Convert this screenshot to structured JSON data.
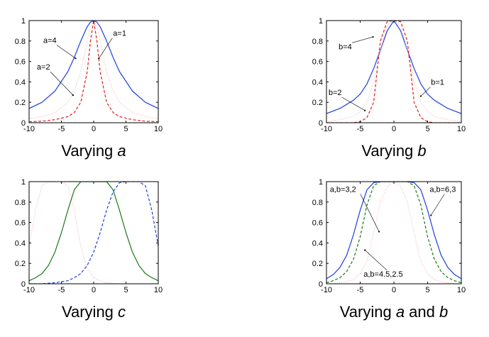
{
  "chart_data": [
    {
      "type": "line",
      "caption": {
        "prefix": "Varying ",
        "var": "a",
        "suffix": ""
      },
      "xlim": [
        -10,
        10
      ],
      "ylim": [
        0,
        1
      ],
      "xticks": [
        -10,
        -5,
        0,
        5,
        10
      ],
      "yticks": [
        0,
        0.2,
        0.4,
        0.6,
        0.8,
        1
      ],
      "x": [
        -10,
        -8,
        -6,
        -4,
        -3,
        -2,
        -1,
        -0.5,
        0,
        0.5,
        1,
        2,
        3,
        4,
        6,
        8,
        10
      ],
      "series": [
        {
          "color": "#1f3fe0",
          "dash": "solid",
          "y": [
            0.14,
            0.2,
            0.31,
            0.5,
            0.64,
            0.8,
            0.94,
            0.985,
            1,
            0.985,
            0.94,
            0.8,
            0.64,
            0.5,
            0.31,
            0.2,
            0.14
          ]
        },
        {
          "color": "#f2b8b8",
          "dash": "dotted",
          "y": [
            0.04,
            0.06,
            0.1,
            0.2,
            0.31,
            0.5,
            0.8,
            0.94,
            1,
            0.94,
            0.8,
            0.5,
            0.31,
            0.2,
            0.1,
            0.06,
            0.04
          ]
        },
        {
          "color": "#e02020",
          "dash": "dashed",
          "y": [
            0.01,
            0.015,
            0.03,
            0.06,
            0.1,
            0.2,
            0.5,
            0.8,
            1,
            0.8,
            0.5,
            0.2,
            0.1,
            0.06,
            0.03,
            0.015,
            0.01
          ]
        }
      ],
      "annotations": [
        {
          "text": "a=4",
          "x": -7.8,
          "y": 0.78,
          "ax": -2.8,
          "ay": 0.63
        },
        {
          "text": "a=2",
          "x": -8.8,
          "y": 0.52,
          "ax": -3.2,
          "ay": 0.27
        },
        {
          "text": "a=1",
          "x": 3.0,
          "y": 0.85,
          "ax": 0.8,
          "ay": 0.63
        }
      ]
    },
    {
      "type": "line",
      "caption": {
        "prefix": "Varying ",
        "var": "b",
        "suffix": ""
      },
      "xlim": [
        -10,
        10
      ],
      "ylim": [
        0,
        1
      ],
      "xticks": [
        -10,
        -5,
        0,
        5,
        10
      ],
      "yticks": [
        0,
        0.2,
        0.4,
        0.6,
        0.8,
        1
      ],
      "x": [
        -10,
        -8,
        -6,
        -5,
        -4,
        -3,
        -2.5,
        -2,
        -1,
        0,
        1,
        2,
        2.5,
        3,
        4,
        5,
        6,
        8,
        10
      ],
      "series": [
        {
          "color": "#1f3fe0",
          "dash": "solid",
          "y": [
            0.09,
            0.14,
            0.22,
            0.28,
            0.38,
            0.53,
            0.62,
            0.71,
            0.9,
            1,
            0.9,
            0.71,
            0.62,
            0.53,
            0.38,
            0.28,
            0.22,
            0.14,
            0.09
          ]
        },
        {
          "color": "#f2b8b8",
          "dash": "dotted",
          "y": [
            0.01,
            0.03,
            0.06,
            0.11,
            0.2,
            0.4,
            0.56,
            0.71,
            0.95,
            1,
            0.95,
            0.71,
            0.56,
            0.4,
            0.2,
            0.11,
            0.06,
            0.03,
            0.01
          ]
        },
        {
          "color": "#e02020",
          "dash": "dashed",
          "y": [
            0,
            0,
            0,
            0.01,
            0.05,
            0.2,
            0.5,
            0.8,
            0.99,
            1,
            0.99,
            0.8,
            0.5,
            0.2,
            0.05,
            0.01,
            0,
            0,
            0
          ]
        }
      ],
      "annotations": [
        {
          "text": "b=4",
          "x": -8.2,
          "y": 0.72,
          "ax": -3.1,
          "ay": 0.84
        },
        {
          "text": "b=2",
          "x": -9.7,
          "y": 0.27,
          "ax": -4.3,
          "ay": 0.12
        },
        {
          "text": "b=1",
          "x": 5.5,
          "y": 0.37,
          "ax": 4.0,
          "ay": 0.26
        }
      ]
    },
    {
      "type": "line",
      "caption": {
        "prefix": "Varying ",
        "var": "c",
        "suffix": ""
      },
      "xlim": [
        -10,
        10
      ],
      "ylim": [
        0,
        1
      ],
      "xticks": [
        -10,
        -5,
        0,
        5,
        10
      ],
      "yticks": [
        0,
        0.2,
        0.4,
        0.6,
        0.8,
        1
      ],
      "x": [
        -10,
        -9,
        -8,
        -7,
        -6,
        -5,
        -4,
        -3,
        -2,
        -1,
        0,
        1,
        2,
        3,
        4,
        5,
        6,
        7,
        8,
        9,
        10
      ],
      "series": [
        {
          "color": "#f2b8b8",
          "dash": "dotted",
          "y": [
            0.37,
            0.72,
            0.96,
            1,
            1,
            1,
            0.96,
            0.72,
            0.37,
            0.15,
            0.06,
            0.03,
            0.01,
            0.005,
            0,
            0,
            0,
            0,
            0,
            0,
            0
          ]
        },
        {
          "color": "#1a7a1a",
          "dash": "solid",
          "y": [
            0.03,
            0.06,
            0.1,
            0.18,
            0.31,
            0.5,
            0.72,
            0.92,
            1,
            1,
            1,
            1,
            1,
            0.92,
            0.72,
            0.5,
            0.31,
            0.18,
            0.1,
            0.06,
            0.03
          ]
        },
        {
          "color": "#1f3fe0",
          "dash": "dashed",
          "y": [
            0,
            0,
            0,
            0.005,
            0.01,
            0.02,
            0.03,
            0.06,
            0.1,
            0.18,
            0.31,
            0.5,
            0.72,
            0.9,
            0.99,
            1,
            1,
            1,
            0.96,
            0.72,
            0.37
          ]
        }
      ],
      "annotations": []
    },
    {
      "type": "line",
      "caption": {
        "prefix": "Varying ",
        "var": "a",
        "suffix": " and b"
      },
      "xlim": [
        -10,
        10
      ],
      "ylim": [
        0,
        1
      ],
      "xticks": [
        -10,
        -5,
        0,
        5,
        10
      ],
      "yticks": [
        0,
        0.2,
        0.4,
        0.6,
        0.8,
        1
      ],
      "x": [
        -10,
        -9,
        -8,
        -7,
        -6,
        -5,
        -4,
        -3,
        -2,
        -1,
        0,
        1,
        2,
        3,
        4,
        5,
        6,
        7,
        8,
        9,
        10
      ],
      "series": [
        {
          "color": "#1f3fe0",
          "dash": "solid",
          "y": [
            0.05,
            0.09,
            0.16,
            0.28,
            0.48,
            0.72,
            0.92,
            0.99,
            1,
            1,
            1,
            1,
            1,
            0.99,
            0.92,
            0.72,
            0.48,
            0.28,
            0.16,
            0.09,
            0.05
          ]
        },
        {
          "color": "#1a7a1a",
          "dash": "dashed",
          "y": [
            0.01,
            0.03,
            0.06,
            0.12,
            0.24,
            0.46,
            0.77,
            0.96,
            1,
            1,
            1,
            1,
            1,
            0.96,
            0.77,
            0.46,
            0.24,
            0.12,
            0.06,
            0.03,
            0.01
          ]
        },
        {
          "color": "#f2b8b8",
          "dash": "dotted",
          "y": [
            0,
            0,
            0.01,
            0.02,
            0.04,
            0.1,
            0.22,
            0.5,
            0.8,
            0.95,
            1,
            0.95,
            0.8,
            0.5,
            0.22,
            0.1,
            0.04,
            0.02,
            0.01,
            0,
            0
          ]
        }
      ],
      "annotations": [
        {
          "text": "a,b=3,2",
          "x": -9.5,
          "y": 0.9,
          "ax": -2.2,
          "ay": 0.51
        },
        {
          "text": "a,b=6,3",
          "x": 5.3,
          "y": 0.9,
          "ax": 5.5,
          "ay": 0.67
        },
        {
          "text": "a,b=4.5,2.5",
          "x": -4.5,
          "y": 0.07,
          "ax": -4.3,
          "ay": 0.33
        }
      ]
    }
  ]
}
